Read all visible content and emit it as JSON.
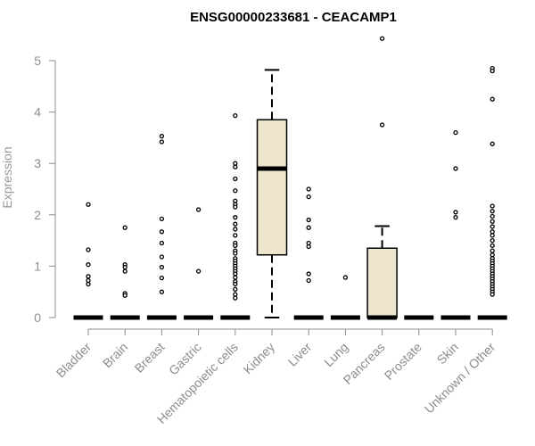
{
  "chart_data": {
    "type": "box",
    "title": "ENSG00000233681 - CEACAMP1",
    "xlabel": "",
    "ylabel": "Expression",
    "ylim": [
      0,
      5
    ],
    "yticks": [
      "0",
      "1",
      "2",
      "3",
      "4",
      "5"
    ],
    "box_fill": "#ede6cc",
    "categories": [
      "Bladder",
      "Brain",
      "Breast",
      "Gastric",
      "Hematopoietic cells",
      "Kidney",
      "Liver",
      "Lung",
      "Pancreas",
      "Prostate",
      "Skin",
      "Unknown / Other"
    ],
    "boxes": [
      {
        "category": "Bladder",
        "min": 0,
        "q1": 0,
        "median": 0,
        "q3": 0,
        "max": 0,
        "outliers": [
          2.2,
          1.32,
          1.03,
          0.8,
          0.72,
          0.65
        ]
      },
      {
        "category": "Brain",
        "min": 0,
        "q1": 0,
        "median": 0,
        "q3": 0,
        "max": 0,
        "outliers": [
          1.75,
          1.03,
          0.98,
          0.9,
          0.47,
          0.43
        ]
      },
      {
        "category": "Breast",
        "min": 0,
        "q1": 0,
        "median": 0,
        "q3": 0,
        "max": 0,
        "outliers": [
          3.53,
          3.42,
          1.92,
          1.67,
          1.45,
          1.18,
          0.98,
          0.77,
          0.5
        ]
      },
      {
        "category": "Gastric",
        "min": 0,
        "q1": 0,
        "median": 0,
        "q3": 0,
        "max": 0,
        "outliers": [
          2.1,
          0.9
        ]
      },
      {
        "category": "Hematopoietic cells",
        "min": 0,
        "q1": 0,
        "median": 0,
        "q3": 0,
        "max": 0,
        "outliers": [
          3.93,
          3.0,
          2.93,
          2.7,
          2.47,
          2.27,
          2.2,
          2.15,
          1.95,
          1.82,
          1.72,
          1.6,
          1.45,
          1.4,
          1.3,
          1.25,
          1.15,
          1.1,
          1.05,
          1.0,
          0.95,
          0.9,
          0.85,
          0.78,
          0.7,
          0.65,
          0.55,
          0.45,
          0.38
        ]
      },
      {
        "category": "Kidney",
        "min": 0,
        "q1": 1.22,
        "median": 2.9,
        "q3": 3.85,
        "max": 4.82,
        "outliers": []
      },
      {
        "category": "Liver",
        "min": 0,
        "q1": 0,
        "median": 0,
        "q3": 0,
        "max": 0,
        "outliers": [
          2.5,
          2.35,
          1.9,
          1.75,
          1.45,
          1.38,
          0.85,
          0.72
        ]
      },
      {
        "category": "Lung",
        "min": 0,
        "q1": 0,
        "median": 0,
        "q3": 0,
        "max": 0,
        "outliers": [
          0.78
        ]
      },
      {
        "category": "Pancreas",
        "min": 0,
        "q1": 0,
        "median": 0,
        "q3": 1.35,
        "max": 1.78,
        "outliers": [
          5.43,
          3.75
        ]
      },
      {
        "category": "Prostate",
        "min": 0,
        "q1": 0,
        "median": 0,
        "q3": 0,
        "max": 0,
        "outliers": []
      },
      {
        "category": "Skin",
        "min": 0,
        "q1": 0,
        "median": 0,
        "q3": 0,
        "max": 0,
        "outliers": [
          3.6,
          2.9,
          2.05,
          1.95
        ]
      },
      {
        "category": "Unknown / Other",
        "min": 0,
        "q1": 0,
        "median": 0,
        "q3": 0,
        "max": 0,
        "outliers": [
          4.85,
          4.8,
          4.25,
          3.38,
          2.17,
          2.07,
          1.97,
          1.87,
          1.77,
          1.67,
          1.6,
          1.5,
          1.4,
          1.3,
          1.22,
          1.15,
          1.1,
          1.05,
          1.0,
          0.95,
          0.9,
          0.85,
          0.8,
          0.75,
          0.7,
          0.65,
          0.6,
          0.55,
          0.5,
          0.45
        ]
      }
    ]
  }
}
